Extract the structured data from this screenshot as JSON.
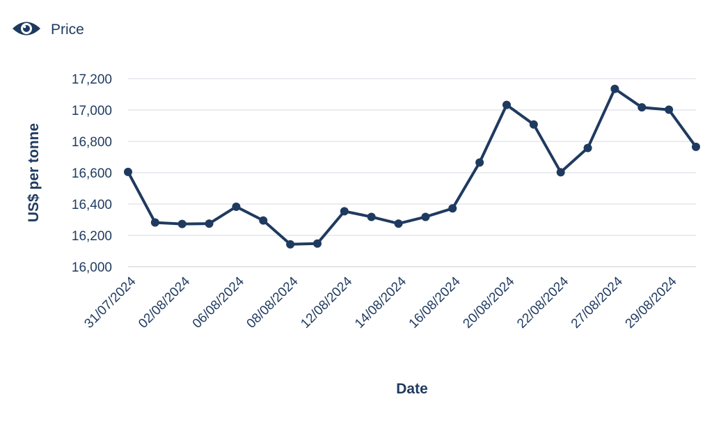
{
  "legend": {
    "label": "Price",
    "icon": "eye-icon"
  },
  "colors": {
    "series": "#1f3a5f",
    "grid": "#d6dae3",
    "text": "#1f3a5f"
  },
  "chart_data": {
    "type": "line",
    "xlabel": "Date",
    "ylabel": "US$ per tonne",
    "ylim": [
      16000,
      17200
    ],
    "yticks": [
      16000,
      16200,
      16400,
      16600,
      16800,
      17000,
      17200
    ],
    "grid": true,
    "legend_position": "top-left",
    "x": [
      "31/07/2024",
      "01/08/2024",
      "02/08/2024",
      "05/08/2024",
      "06/08/2024",
      "07/08/2024",
      "08/08/2024",
      "09/08/2024",
      "12/08/2024",
      "13/08/2024",
      "14/08/2024",
      "15/08/2024",
      "16/08/2024",
      "19/08/2024",
      "20/08/2024",
      "21/08/2024",
      "22/08/2024",
      "23/08/2024",
      "27/08/2024",
      "28/08/2024",
      "29/08/2024",
      "30/08/2024"
    ],
    "xtick_labels": [
      "31/07/2024",
      "02/08/2024",
      "06/08/2024",
      "08/08/2024",
      "12/08/2024",
      "14/08/2024",
      "16/08/2024",
      "20/08/2024",
      "22/08/2024",
      "27/08/2024",
      "29/08/2024"
    ],
    "series": [
      {
        "name": "Price",
        "values": [
          16605,
          16282,
          16273,
          16275,
          16383,
          16295,
          16143,
          16148,
          16354,
          16318,
          16275,
          16318,
          16372,
          16665,
          17033,
          16908,
          16603,
          16758,
          17135,
          17017,
          17002,
          16765
        ]
      }
    ]
  }
}
